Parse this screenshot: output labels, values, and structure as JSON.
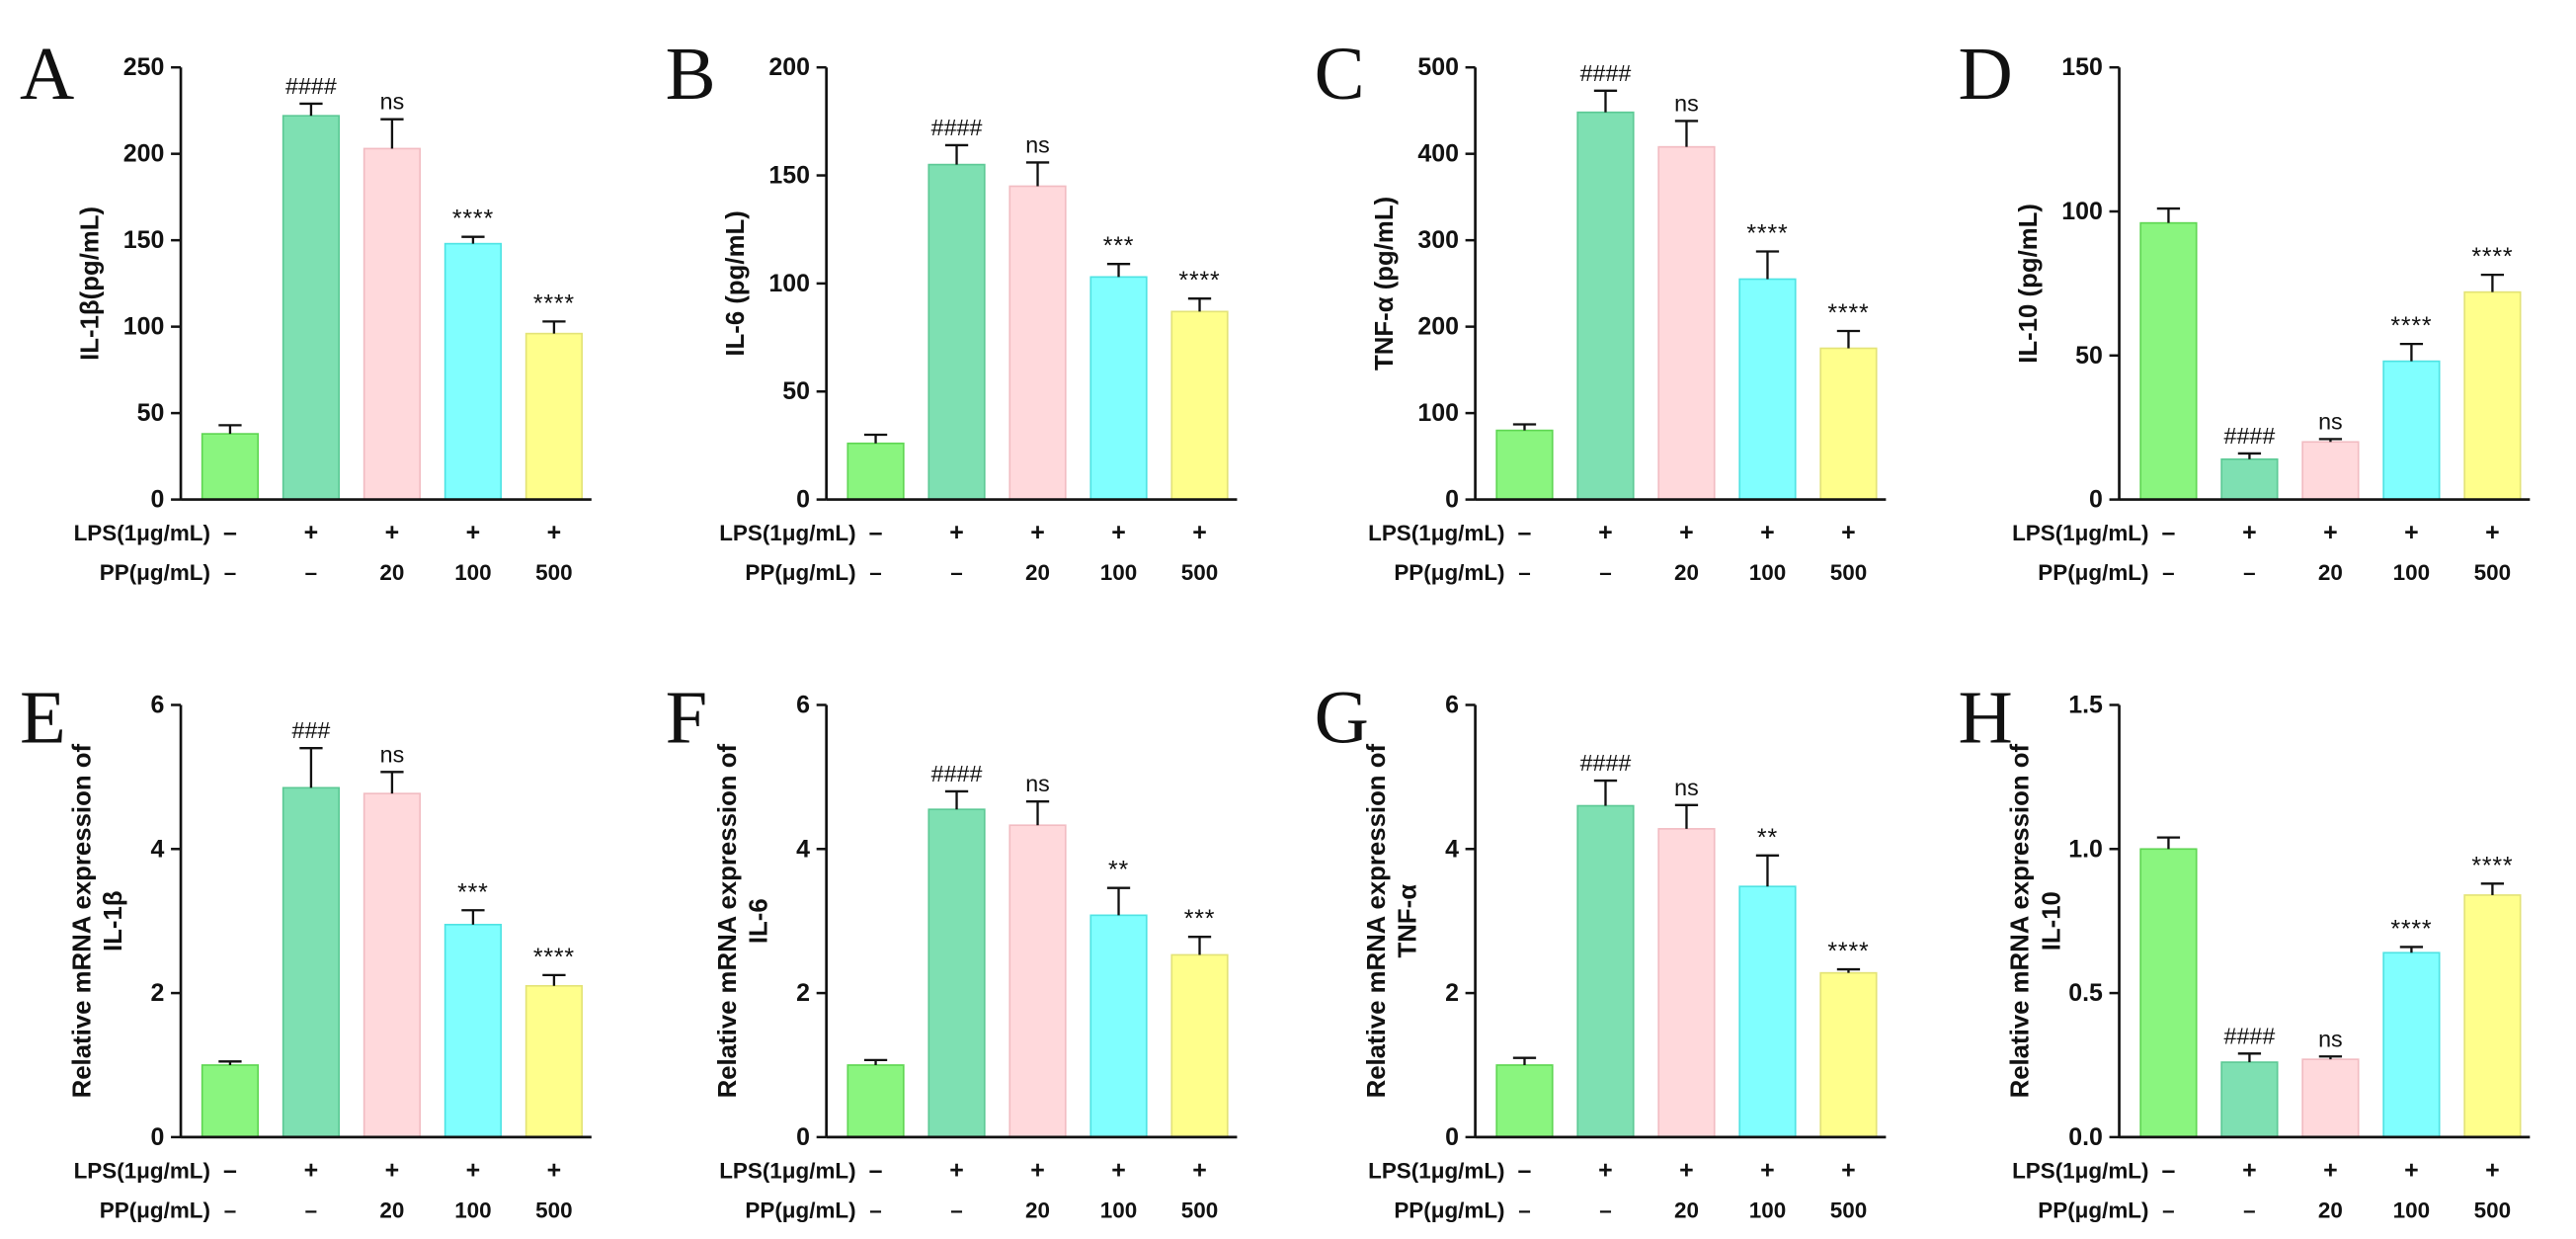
{
  "groups": {
    "lps_label": "LPS(1μg/mL)",
    "pp_label": "PP(μg/mL)",
    "lps": [
      "–",
      "+",
      "+",
      "+",
      "+"
    ],
    "pp": [
      "–",
      "–",
      "20",
      "100",
      "500"
    ],
    "bar_colors": [
      "#8AF57F",
      "#7EE0B2",
      "#FFD9DC",
      "#80FFFF",
      "#FFFF8C"
    ],
    "bar_edge_colors": [
      "#5FD653",
      "#5CC995",
      "#F2BCC2",
      "#4FE3E3",
      "#E3E377"
    ]
  },
  "chart_data": [
    {
      "panel": "A",
      "type": "bar",
      "ylabel": [
        "IL-1β(pg/mL)"
      ],
      "ylim": [
        0,
        250
      ],
      "yticks": [
        0,
        50,
        100,
        150,
        200,
        250
      ],
      "ytick_labels": [
        "0",
        "50",
        "100",
        "150",
        "200",
        "250"
      ],
      "values": [
        38,
        222,
        203,
        148,
        96
      ],
      "errors": [
        5,
        7,
        17,
        4,
        7
      ],
      "significance": [
        "",
        "####",
        "ns",
        "****",
        "****"
      ]
    },
    {
      "panel": "B",
      "type": "bar",
      "ylabel": [
        "IL-6 (pg/mL)"
      ],
      "ylim": [
        0,
        200
      ],
      "yticks": [
        0,
        50,
        100,
        150,
        200
      ],
      "ytick_labels": [
        "0",
        "50",
        "100",
        "150",
        "200"
      ],
      "values": [
        26,
        155,
        145,
        103,
        87
      ],
      "errors": [
        4,
        9,
        11,
        6,
        6
      ],
      "significance": [
        "",
        "####",
        "ns",
        "***",
        "****"
      ]
    },
    {
      "panel": "C",
      "type": "bar",
      "ylabel": [
        "TNF-α (pg/mL)"
      ],
      "ylim": [
        0,
        500
      ],
      "yticks": [
        0,
        100,
        200,
        300,
        400,
        500
      ],
      "ytick_labels": [
        "0",
        "100",
        "200",
        "300",
        "400",
        "500"
      ],
      "values": [
        80,
        448,
        408,
        255,
        175
      ],
      "errors": [
        7,
        25,
        30,
        32,
        20
      ],
      "significance": [
        "",
        "####",
        "ns",
        "****",
        "****"
      ]
    },
    {
      "panel": "D",
      "type": "bar",
      "ylabel": [
        "IL-10 (pg/mL)"
      ],
      "ylim": [
        0,
        150
      ],
      "yticks": [
        0,
        50,
        100,
        150
      ],
      "ytick_labels": [
        "0",
        "50",
        "100",
        "150"
      ],
      "values": [
        96,
        14,
        20,
        48,
        72
      ],
      "errors": [
        5,
        2,
        1,
        6,
        6
      ],
      "significance": [
        "",
        "####",
        "ns",
        "****",
        "****"
      ]
    },
    {
      "panel": "E",
      "type": "bar",
      "ylabel": [
        "Relative mRNA expression of",
        "IL-1β"
      ],
      "ylim": [
        0,
        6
      ],
      "yticks": [
        0,
        2,
        4,
        6
      ],
      "ytick_labels": [
        "0",
        "2",
        "4",
        "6"
      ],
      "values": [
        1.0,
        4.85,
        4.77,
        2.95,
        2.1
      ],
      "errors": [
        0.05,
        0.55,
        0.3,
        0.2,
        0.15
      ],
      "significance": [
        "",
        "###",
        "ns",
        "***",
        "****"
      ]
    },
    {
      "panel": "F",
      "type": "bar",
      "ylabel": [
        "Relative mRNA expression of",
        "IL-6"
      ],
      "ylim": [
        0,
        6
      ],
      "yticks": [
        0,
        2,
        4,
        6
      ],
      "ytick_labels": [
        "0",
        "2",
        "4",
        "6"
      ],
      "values": [
        1.0,
        4.55,
        4.33,
        3.08,
        2.53
      ],
      "errors": [
        0.07,
        0.25,
        0.33,
        0.38,
        0.25
      ],
      "significance": [
        "",
        "####",
        "ns",
        "**",
        "***"
      ]
    },
    {
      "panel": "G",
      "type": "bar",
      "ylabel": [
        "Relative mRNA expression of",
        "TNF-α"
      ],
      "ylim": [
        0,
        6
      ],
      "yticks": [
        0,
        2,
        4,
        6
      ],
      "ytick_labels": [
        "0",
        "2",
        "4",
        "6"
      ],
      "values": [
        1.0,
        4.6,
        4.28,
        3.48,
        2.28
      ],
      "errors": [
        0.1,
        0.35,
        0.33,
        0.43,
        0.05
      ],
      "significance": [
        "",
        "####",
        "ns",
        "**",
        "****"
      ]
    },
    {
      "panel": "H",
      "type": "bar",
      "ylabel": [
        "Relative mRNA expression of",
        "IL-10"
      ],
      "ylim": [
        0,
        1.5
      ],
      "yticks": [
        0,
        0.5,
        1.0,
        1.5
      ],
      "ytick_labels": [
        "0.0",
        "0.5",
        "1.0",
        "1.5"
      ],
      "values": [
        1.0,
        0.26,
        0.27,
        0.64,
        0.84
      ],
      "errors": [
        0.04,
        0.03,
        0.01,
        0.02,
        0.04
      ],
      "significance": [
        "",
        "####",
        "ns",
        "****",
        "****"
      ]
    }
  ]
}
